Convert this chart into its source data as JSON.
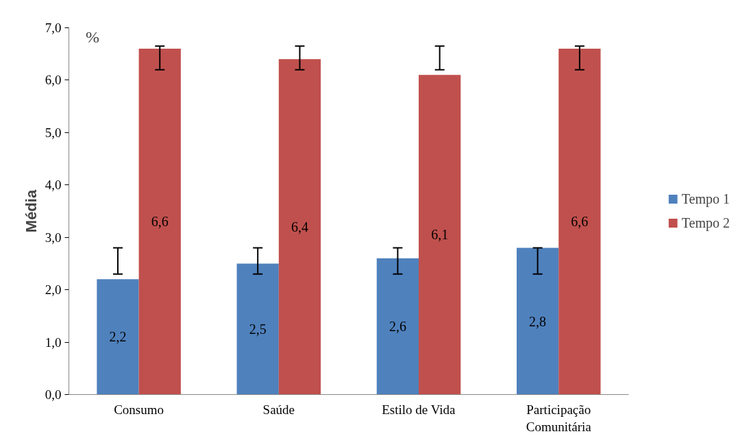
{
  "chart_data": {
    "type": "bar",
    "ylabel": "Média",
    "annotations": [
      "%"
    ],
    "categories": [
      "Consumo",
      "Saúde",
      "Estilo de Vida",
      "Participação\nComunitária"
    ],
    "series": [
      {
        "name": "Tempo 1",
        "color": "#4f81bd",
        "values": [
          2.2,
          2.5,
          2.6,
          2.8
        ],
        "value_labels": [
          "2,2",
          "2,5",
          "2,6",
          "2,8"
        ],
        "errors": [
          [
            2.3,
            2.8
          ],
          [
            2.3,
            2.8
          ],
          [
            2.3,
            2.8
          ],
          [
            2.3,
            2.8
          ]
        ]
      },
      {
        "name": "Tempo 2",
        "color": "#c0504d",
        "values": [
          6.6,
          6.4,
          6.1,
          6.6
        ],
        "value_labels": [
          "6,6",
          "6,4",
          "6,1",
          "6,6"
        ],
        "errors": [
          [
            6.2,
            6.65
          ],
          [
            6.2,
            6.65
          ],
          [
            6.2,
            6.65
          ],
          [
            6.2,
            6.65
          ]
        ]
      }
    ],
    "ylim": [
      0,
      7
    ],
    "yticks": [
      {
        "value": 0,
        "label": "0,0"
      },
      {
        "value": 1,
        "label": "1,0"
      },
      {
        "value": 2,
        "label": "2,0"
      },
      {
        "value": 3,
        "label": "3,0"
      },
      {
        "value": 4,
        "label": "4,0"
      },
      {
        "value": 5,
        "label": "5,0"
      },
      {
        "value": 6,
        "label": "6,0"
      },
      {
        "value": 7,
        "label": "7,0"
      }
    ],
    "grid": false,
    "legend": "right"
  }
}
